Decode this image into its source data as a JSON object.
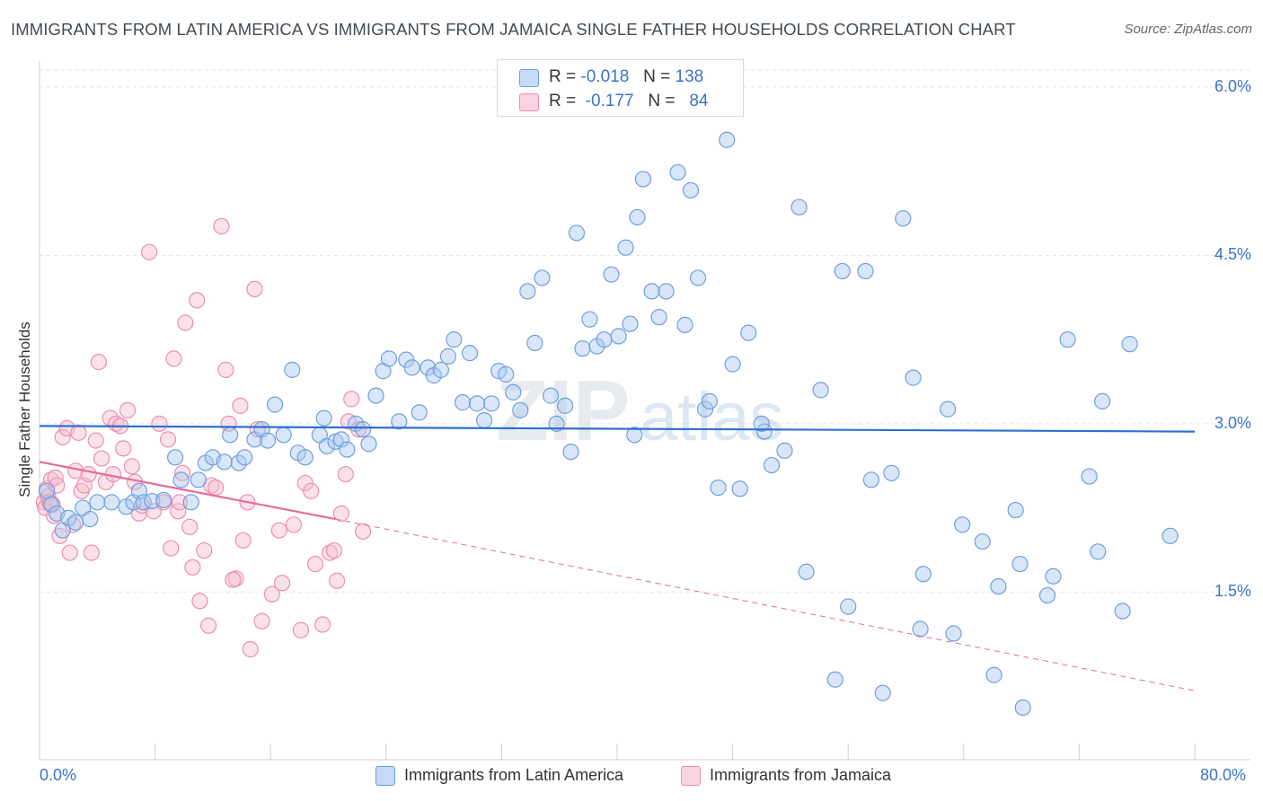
{
  "title": "IMMIGRANTS FROM LATIN AMERICA VS IMMIGRANTS FROM JAMAICA SINGLE FATHER HOUSEHOLDS CORRELATION CHART",
  "source": "Source: ZipAtlas.com",
  "colors": {
    "blue_fill": "#a9c8f0",
    "blue_stroke": "#6f9fde",
    "blue_line": "#2f6fd0",
    "pink_fill": "#f6bfd0",
    "pink_stroke": "#eb8fad",
    "pink_line": "#e8699a",
    "grid": "#e3e3e3",
    "tick_text": "#3b74c7"
  },
  "legend": {
    "blue": {
      "r_label": "R =",
      "r_value": "-0.018",
      "n_label": "N =",
      "n_value": "138"
    },
    "pink": {
      "r_label": "R =",
      "r_value": "-0.177",
      "n_label": "N =",
      "n_value": "84"
    }
  },
  "chart_data": {
    "type": "scatter",
    "title": "IMMIGRANTS FROM LATIN AMERICA VS IMMIGRANTS FROM JAMAICA SINGLE FATHER HOUSEHOLDS CORRELATION CHART",
    "xlabel": "",
    "ylabel": "Single Father Households",
    "xlim": [
      0,
      80
    ],
    "ylim": [
      0,
      6.2
    ],
    "x_tick_labels": {
      "min": "0.0%",
      "max": "80.0%"
    },
    "y_ticks": [
      {
        "value": 1.5,
        "label": "1.5%"
      },
      {
        "value": 3.0,
        "label": "3.0%"
      },
      {
        "value": 4.5,
        "label": "4.5%"
      },
      {
        "value": 6.0,
        "label": "6.0%"
      }
    ],
    "series": [
      {
        "name": "Immigrants from Latin America",
        "color": "blue",
        "trend": {
          "x": [
            0,
            80
          ],
          "y": [
            2.98,
            2.93
          ]
        },
        "points": [
          [
            0.5,
            2.4
          ],
          [
            0.8,
            2.28
          ],
          [
            1.2,
            2.2
          ],
          [
            1.6,
            2.05
          ],
          [
            2,
            2.16
          ],
          [
            2.5,
            2.12
          ],
          [
            3,
            2.25
          ],
          [
            3.5,
            2.15
          ],
          [
            4,
            2.3
          ],
          [
            5,
            2.3
          ],
          [
            6,
            2.26
          ],
          [
            6.5,
            2.3
          ],
          [
            6.9,
            2.4
          ],
          [
            7.2,
            2.3
          ],
          [
            7.8,
            2.31
          ],
          [
            8.6,
            2.32
          ],
          [
            9.4,
            2.7
          ],
          [
            9.8,
            2.5
          ],
          [
            10.5,
            2.3
          ],
          [
            11,
            2.5
          ],
          [
            11.5,
            2.65
          ],
          [
            12,
            2.7
          ],
          [
            12.8,
            2.66
          ],
          [
            13.2,
            2.9
          ],
          [
            13.8,
            2.65
          ],
          [
            14.2,
            2.7
          ],
          [
            14.9,
            2.86
          ],
          [
            15.4,
            2.95
          ],
          [
            15.8,
            2.85
          ],
          [
            16.3,
            3.17
          ],
          [
            16.9,
            2.9
          ],
          [
            17.5,
            3.48
          ],
          [
            17.9,
            2.74
          ],
          [
            18.4,
            2.7
          ],
          [
            19.4,
            2.9
          ],
          [
            19.7,
            3.05
          ],
          [
            19.9,
            2.8
          ],
          [
            20.5,
            2.84
          ],
          [
            20.9,
            2.86
          ],
          [
            21.3,
            2.77
          ],
          [
            21.9,
            3.0
          ],
          [
            22.4,
            2.95
          ],
          [
            22.8,
            2.82
          ],
          [
            23.3,
            3.25
          ],
          [
            23.8,
            3.47
          ],
          [
            24.2,
            3.58
          ],
          [
            24.9,
            3.02
          ],
          [
            25.4,
            3.57
          ],
          [
            25.8,
            3.5
          ],
          [
            26.3,
            3.1
          ],
          [
            26.9,
            3.5
          ],
          [
            27.3,
            3.43
          ],
          [
            27.8,
            3.48
          ],
          [
            28.3,
            3.6
          ],
          [
            28.7,
            3.75
          ],
          [
            29.3,
            3.19
          ],
          [
            29.8,
            3.63
          ],
          [
            30.3,
            3.18
          ],
          [
            30.8,
            3.03
          ],
          [
            31.3,
            3.18
          ],
          [
            31.8,
            3.47
          ],
          [
            32.3,
            3.44
          ],
          [
            32.8,
            3.28
          ],
          [
            33.3,
            3.12
          ],
          [
            33.8,
            4.18
          ],
          [
            34.3,
            3.72
          ],
          [
            34.8,
            4.3
          ],
          [
            35.4,
            3.25
          ],
          [
            35.8,
            3.0
          ],
          [
            36.4,
            3.16
          ],
          [
            36.8,
            2.75
          ],
          [
            37.2,
            4.7
          ],
          [
            37.6,
            3.67
          ],
          [
            38.1,
            3.93
          ],
          [
            38.6,
            3.69
          ],
          [
            39.1,
            3.75
          ],
          [
            39.6,
            4.33
          ],
          [
            40.1,
            3.78
          ],
          [
            40.6,
            4.57
          ],
          [
            40.9,
            3.89
          ],
          [
            41.4,
            4.84
          ],
          [
            41.8,
            5.18
          ],
          [
            42.4,
            4.18
          ],
          [
            42.9,
            3.95
          ],
          [
            43.4,
            4.18
          ],
          [
            44.2,
            5.24
          ],
          [
            44.7,
            3.88
          ],
          [
            45.1,
            5.08
          ],
          [
            45.6,
            4.3
          ],
          [
            46.1,
            3.13
          ],
          [
            46.4,
            3.2
          ],
          [
            47.0,
            2.43
          ],
          [
            47.6,
            5.53
          ],
          [
            48.0,
            3.53
          ],
          [
            48.5,
            2.42
          ],
          [
            49.1,
            3.81
          ],
          [
            50.2,
            2.93
          ],
          [
            50.7,
            2.63
          ],
          [
            51.6,
            2.76
          ],
          [
            52.6,
            4.93
          ],
          [
            53.1,
            1.68
          ],
          [
            54.1,
            3.3
          ],
          [
            55.1,
            0.72
          ],
          [
            55.6,
            4.36
          ],
          [
            56.0,
            1.37
          ],
          [
            57.2,
            4.36
          ],
          [
            57.6,
            2.5
          ],
          [
            58.4,
            0.6
          ],
          [
            59.0,
            2.56
          ],
          [
            59.8,
            4.83
          ],
          [
            60.5,
            3.41
          ],
          [
            61.0,
            1.17
          ],
          [
            61.2,
            1.66
          ],
          [
            62.9,
            3.13
          ],
          [
            63.3,
            1.13
          ],
          [
            63.9,
            2.1
          ],
          [
            65.3,
            1.95
          ],
          [
            66.4,
            1.55
          ],
          [
            66.1,
            0.76
          ],
          [
            67.6,
            2.23
          ],
          [
            67.9,
            1.75
          ],
          [
            68.1,
            0.47
          ],
          [
            69.8,
            1.47
          ],
          [
            70.2,
            1.64
          ],
          [
            71.2,
            3.75
          ],
          [
            72.7,
            2.53
          ],
          [
            73.3,
            1.86
          ],
          [
            73.6,
            3.2
          ],
          [
            75.0,
            1.33
          ],
          [
            75.5,
            3.71
          ],
          [
            78.3,
            2.0
          ],
          [
            50,
            3.0
          ],
          [
            41.2,
            2.9
          ]
        ]
      },
      {
        "name": "Immigrants from Jamaica",
        "color": "pink",
        "trend": {
          "x": [
            0,
            20.5
          ],
          "y": [
            2.66,
            2.15
          ]
        },
        "trend_extension": {
          "x": [
            20.5,
            80
          ],
          "y": [
            2.15,
            0.62
          ]
        },
        "points": [
          [
            0.3,
            2.3
          ],
          [
            0.4,
            2.25
          ],
          [
            0.5,
            2.42
          ],
          [
            0.6,
            2.35
          ],
          [
            0.7,
            2.3
          ],
          [
            0.8,
            2.5
          ],
          [
            0.9,
            2.28
          ],
          [
            1.0,
            2.18
          ],
          [
            1.1,
            2.52
          ],
          [
            1.2,
            2.45
          ],
          [
            1.4,
            2.0
          ],
          [
            1.6,
            2.88
          ],
          [
            1.9,
            2.96
          ],
          [
            2.1,
            1.85
          ],
          [
            2.3,
            2.1
          ],
          [
            2.5,
            2.58
          ],
          [
            2.7,
            2.92
          ],
          [
            2.9,
            2.4
          ],
          [
            3.1,
            2.45
          ],
          [
            3.4,
            2.55
          ],
          [
            3.6,
            1.85
          ],
          [
            3.9,
            2.85
          ],
          [
            4.1,
            3.55
          ],
          [
            4.3,
            2.69
          ],
          [
            4.6,
            2.48
          ],
          [
            4.9,
            3.05
          ],
          [
            5.1,
            2.55
          ],
          [
            5.3,
            3.0
          ],
          [
            5.6,
            2.98
          ],
          [
            5.8,
            2.78
          ],
          [
            6.1,
            3.12
          ],
          [
            6.4,
            2.62
          ],
          [
            6.6,
            2.48
          ],
          [
            6.9,
            2.2
          ],
          [
            7.1,
            2.27
          ],
          [
            7.6,
            4.53
          ],
          [
            7.9,
            2.22
          ],
          [
            8.3,
            3.0
          ],
          [
            8.6,
            2.3
          ],
          [
            8.9,
            2.86
          ],
          [
            9.1,
            1.89
          ],
          [
            9.3,
            3.58
          ],
          [
            9.6,
            2.22
          ],
          [
            9.9,
            2.56
          ],
          [
            10.1,
            3.9
          ],
          [
            10.4,
            2.08
          ],
          [
            10.6,
            1.72
          ],
          [
            10.9,
            4.1
          ],
          [
            11.1,
            1.42
          ],
          [
            11.4,
            1.87
          ],
          [
            11.7,
            1.2
          ],
          [
            11.9,
            2.45
          ],
          [
            12.2,
            2.43
          ],
          [
            12.6,
            4.76
          ],
          [
            12.9,
            3.48
          ],
          [
            13.1,
            3.0
          ],
          [
            13.6,
            1.62
          ],
          [
            13.9,
            3.16
          ],
          [
            14.1,
            1.96
          ],
          [
            14.4,
            2.3
          ],
          [
            14.6,
            0.99
          ],
          [
            14.9,
            4.2
          ],
          [
            15.1,
            2.95
          ],
          [
            15.4,
            1.24
          ],
          [
            16.1,
            1.48
          ],
          [
            16.6,
            2.05
          ],
          [
            16.8,
            1.58
          ],
          [
            17.6,
            2.1
          ],
          [
            18.1,
            1.16
          ],
          [
            18.4,
            2.47
          ],
          [
            19.1,
            1.75
          ],
          [
            19.6,
            1.21
          ],
          [
            20.1,
            1.85
          ],
          [
            20.6,
            1.6
          ],
          [
            20.9,
            2.2
          ],
          [
            21.2,
            2.55
          ],
          [
            21.4,
            3.02
          ],
          [
            21.6,
            3.22
          ],
          [
            22.1,
            2.95
          ],
          [
            22.4,
            2.04
          ],
          [
            18.8,
            2.4
          ],
          [
            20.4,
            1.87
          ],
          [
            13.4,
            1.61
          ],
          [
            9.7,
            2.3
          ]
        ]
      }
    ]
  },
  "bottom_legend": {
    "blue_label": "Immigrants from Latin America",
    "pink_label": "Immigrants from Jamaica"
  },
  "watermark": {
    "zip": "ZIP",
    "atlas": "atlas"
  }
}
